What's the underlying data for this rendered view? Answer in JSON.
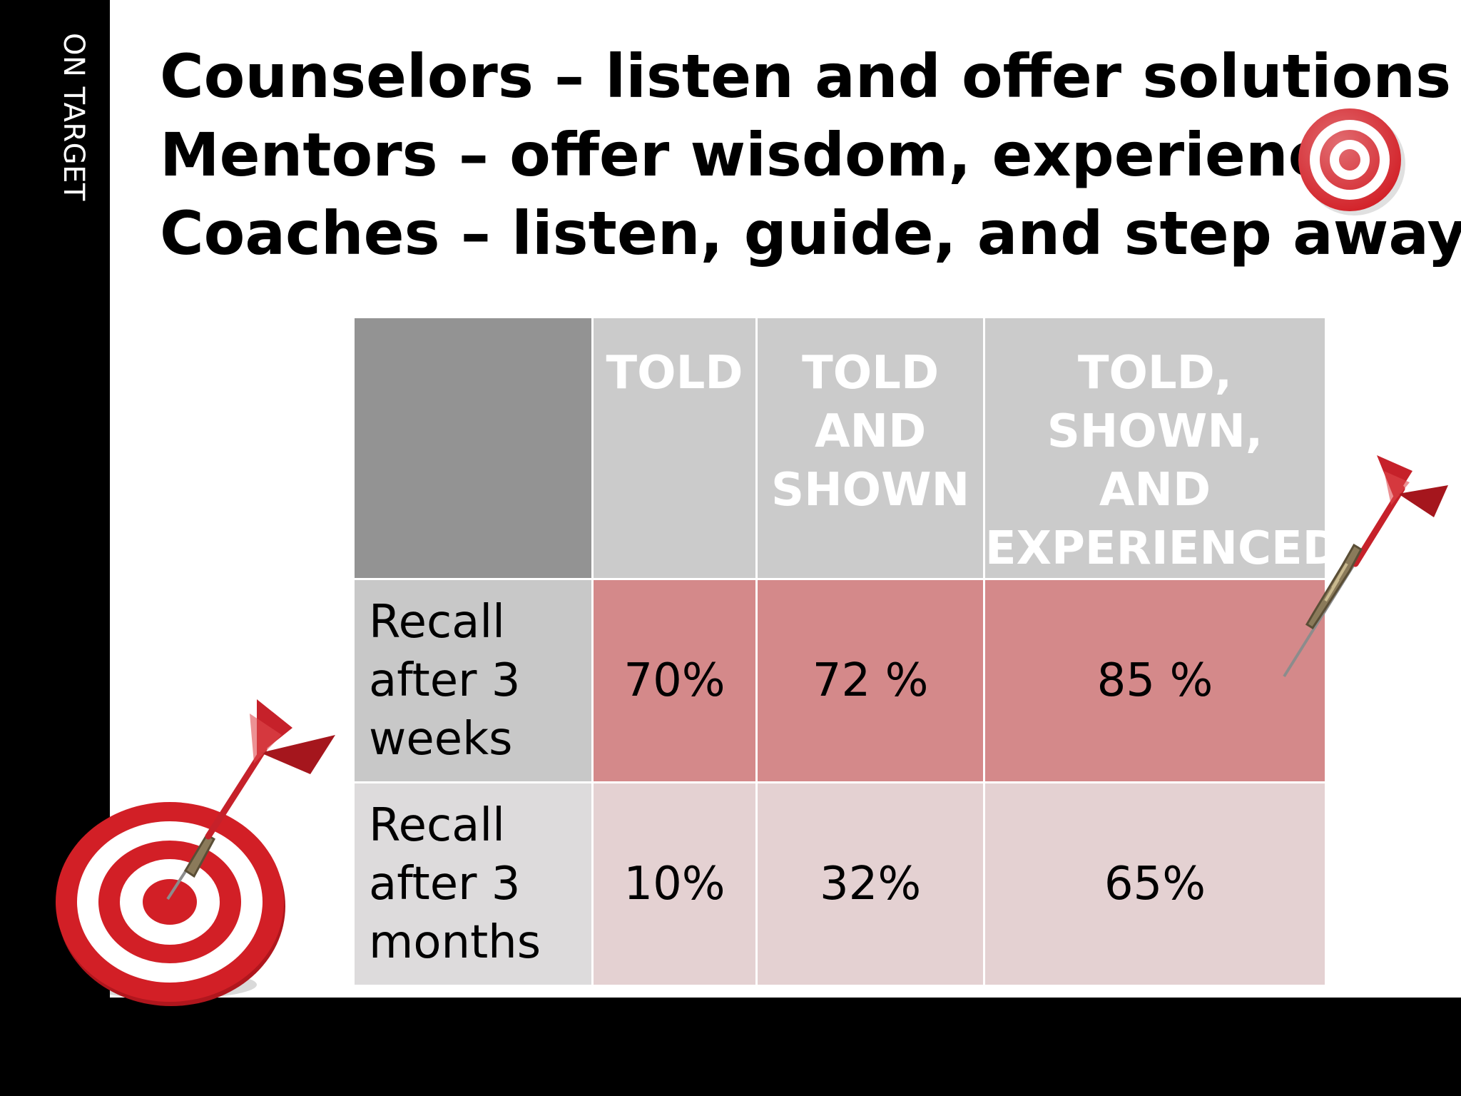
{
  "sidebar": {
    "label": "ON TARGET"
  },
  "title": {
    "lines": [
      "Counselors – listen and offer solutions",
      "Mentors – offer wisdom, experience",
      "Coaches – listen, guide, and step away"
    ]
  },
  "table": {
    "headers": [
      "TOLD",
      "TOLD AND SHOWN",
      "TOLD, SHOWN, AND EXPERIENCED"
    ],
    "rows": [
      {
        "label": "Recall after 3 weeks",
        "values": [
          "70%",
          "72 %",
          "85 %"
        ]
      },
      {
        "label": "Recall after 3 months",
        "values": [
          "10%",
          "32%",
          "65%"
        ]
      }
    ]
  },
  "colors": {
    "side_bar": "#000000",
    "header_bg": "#cbcbcb",
    "corner_bg": "#939393",
    "row1_values_bg": "#d4898a",
    "row2_values_bg": "#e4d1d2",
    "target_red": "#d21f26"
  },
  "icons": [
    "target-icon",
    "dart-icon",
    "dartboard-with-dart-icon"
  ]
}
